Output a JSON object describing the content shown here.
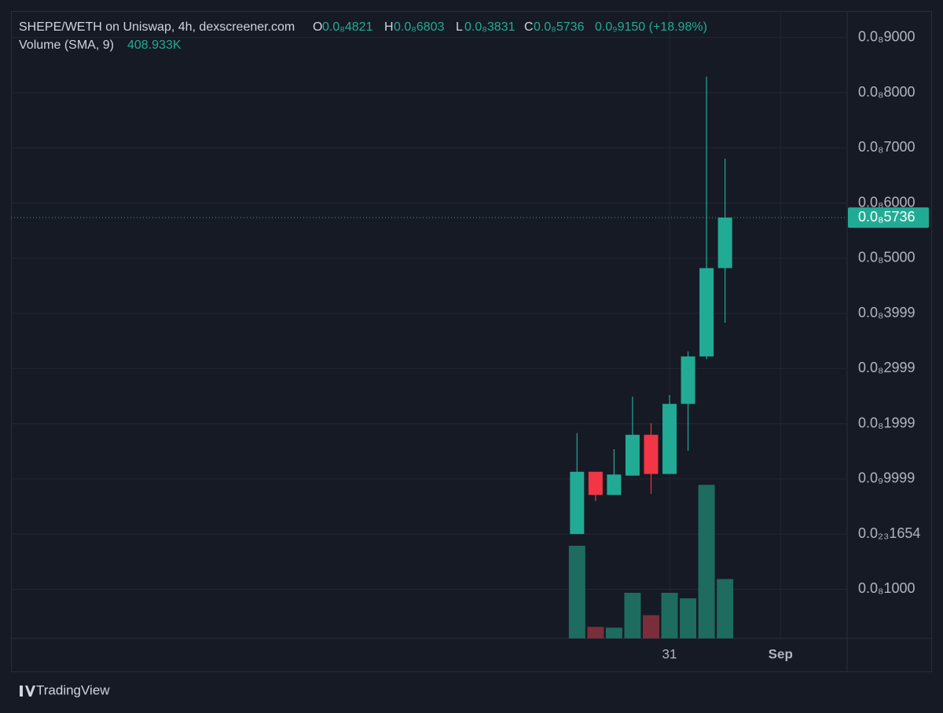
{
  "chart_data": {
    "type": "candlestick",
    "header": {
      "symbol": "SHEPE/WETH on Uniswap, 4h, dexscreener.com",
      "o_key": "O",
      "o": "0.0₈4821",
      "h_key": "H",
      "h": "0.0₈6803",
      "l_key": "L",
      "l": "0.0₈3831",
      "c_key": "C",
      "c": "0.0₈5736",
      "change": "0.0₉9150 (+18.98%)"
    },
    "volume_title": "Volume (SMA, 9)",
    "volume_sma": "408.933K",
    "open": [
      1e-12,
      1.13e-09,
      7.1e-10,
      1.06e-09,
      1.8e-09,
      1.09e-09,
      2.36e-09,
      3.22e-09,
      4.821e-09
    ],
    "high": [
      1.83e-09,
      1.13e-09,
      1.54e-09,
      2.49e-09,
      2.01e-09,
      2.52e-09,
      3.31e-09,
      8.29e-09,
      6.803e-09
    ],
    "low": [
      1e-12,
      6e-10,
      7.1e-10,
      1.06e-09,
      7.3e-10,
      1.09e-09,
      1.51e-09,
      3.17e-09,
      3.831e-09
    ],
    "close": [
      1.13e-09,
      7.1e-10,
      1.08e-09,
      1.8e-09,
      1.09e-09,
      2.36e-09,
      3.22e-09,
      4.82e-09,
      5.736e-09
    ],
    "volume": [
      707000,
      88000,
      82000,
      348000,
      177000,
      348000,
      306000,
      1172000,
      453000
    ],
    "up_color": "#22ab94",
    "down_color": "#f23645",
    "volume_up_color": "#1e6b5f",
    "volume_down_color": "#7a2e3b",
    "last_price_label": "0.0₈5736",
    "ylim": [
      -1.89e-09,
      9.48e-09
    ],
    "yticks": [
      {
        "value": 9e-09,
        "label": "0.0₈9000"
      },
      {
        "value": 8e-09,
        "label": "0.0₈8000"
      },
      {
        "value": 7e-09,
        "label": "0.0₈7000"
      },
      {
        "value": 6e-09,
        "label": "0.0₈6000"
      },
      {
        "value": 5e-09,
        "label": "0.0₈5000"
      },
      {
        "value": 3.999e-09,
        "label": "0.0₈3999"
      },
      {
        "value": 2.999e-09,
        "label": "0.0₈2999"
      },
      {
        "value": 1.999e-09,
        "label": "0.0₈1999"
      },
      {
        "value": 9.999e-10,
        "label": "0.0₉9999"
      },
      {
        "value": 1.654e-24,
        "label": "0.0₂₃1654"
      },
      {
        "value": -1e-09,
        "label": "0.0₈1000"
      }
    ],
    "xlim": [
      -30.6,
      14.6
    ],
    "xticks": [
      {
        "value": 5,
        "label": "31"
      },
      {
        "value": 11,
        "label": "Sep"
      }
    ],
    "volume_ylim": [
      0,
      4788000
    ],
    "grid": true,
    "brand": "TradingView"
  }
}
